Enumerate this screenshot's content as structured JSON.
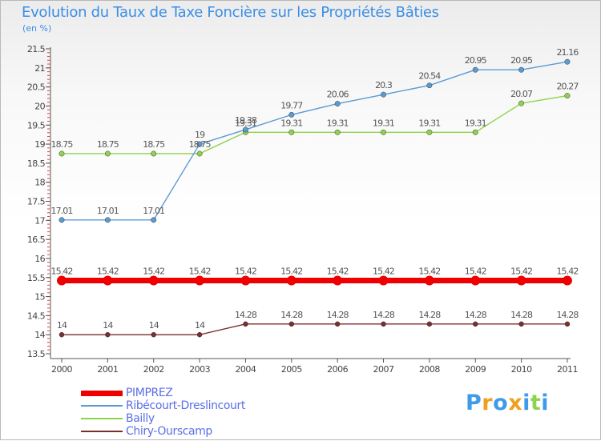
{
  "chart_data": {
    "type": "line",
    "title": "Evolution du Taux de Taxe Foncière sur les Propriétés Bâties",
    "ylabel": "(en %)",
    "xlabel": "",
    "categories": [
      "2000",
      "2001",
      "2002",
      "2003",
      "2004",
      "2005",
      "2006",
      "2007",
      "2008",
      "2009",
      "2010",
      "2011"
    ],
    "ylim": [
      13.5,
      21.5
    ],
    "yticks": [
      13.5,
      14,
      14.5,
      15,
      15.5,
      16,
      16.5,
      17,
      17.5,
      18,
      18.5,
      19,
      19.5,
      20,
      20.5,
      21,
      21.5
    ],
    "ytick_labels": [
      "13.5",
      "14",
      "14.5",
      "15",
      "15.5",
      "16",
      "16.5",
      "17",
      "17.5",
      "18",
      "18.5",
      "19",
      "19.5",
      "20",
      "20.5",
      "21",
      "21.5"
    ],
    "legend_position": "bottom-left",
    "series": [
      {
        "name": "PIMPREZ",
        "color": "#ee0000",
        "values": [
          15.42,
          15.42,
          15.42,
          15.42,
          15.42,
          15.42,
          15.42,
          15.42,
          15.42,
          15.42,
          15.42,
          15.42
        ],
        "labels": [
          "15.42",
          "15.42",
          "15.42",
          "15.42",
          "15.42",
          "15.42",
          "15.42",
          "15.42",
          "15.42",
          "15.42",
          "15.42",
          "15.42"
        ]
      },
      {
        "name": "Ribécourt-Dreslincourt",
        "color": "#5b9bd5",
        "values": [
          17.01,
          17.01,
          17.01,
          19.0,
          19.38,
          19.77,
          20.06,
          20.3,
          20.54,
          20.95,
          20.95,
          21.16
        ],
        "labels": [
          "17.01",
          "17.01",
          "17.01",
          "19",
          "19.38",
          "19.77",
          "20.06",
          "20.3",
          "20.54",
          "20.95",
          "20.95",
          "21.16"
        ]
      },
      {
        "name": "Bailly",
        "color": "#8ed34d",
        "values": [
          18.75,
          18.75,
          18.75,
          18.75,
          19.31,
          19.31,
          19.31,
          19.31,
          19.31,
          19.31,
          20.07,
          20.27
        ],
        "labels": [
          "18.75",
          "18.75",
          "18.75",
          "18.75",
          "19.31",
          "19.31",
          "19.31",
          "19.31",
          "19.31",
          "19.31",
          "20.07",
          "20.27"
        ]
      },
      {
        "name": "Chiry-Ourscamp",
        "color": "#7b2e2e",
        "values": [
          14,
          14,
          14,
          14,
          14.28,
          14.28,
          14.28,
          14.28,
          14.28,
          14.28,
          14.28,
          14.28
        ],
        "labels": [
          "14",
          "14",
          "14",
          "14",
          "14.28",
          "14.28",
          "14.28",
          "14.28",
          "14.28",
          "14.28",
          "14.28",
          "14.28"
        ]
      }
    ]
  },
  "logo": {
    "text": "Proxiti",
    "letters": [
      {
        "ch": "P",
        "color": "#3d9be8"
      },
      {
        "ch": "r",
        "color": "#f0a020"
      },
      {
        "ch": "o",
        "color": "#3d9be8"
      },
      {
        "ch": "x",
        "color": "#f0a020"
      },
      {
        "ch": "i",
        "color": "#3d9be8"
      },
      {
        "ch": "t",
        "color": "#8ed34d"
      },
      {
        "ch": "i",
        "color": "#3d9be8"
      }
    ]
  }
}
